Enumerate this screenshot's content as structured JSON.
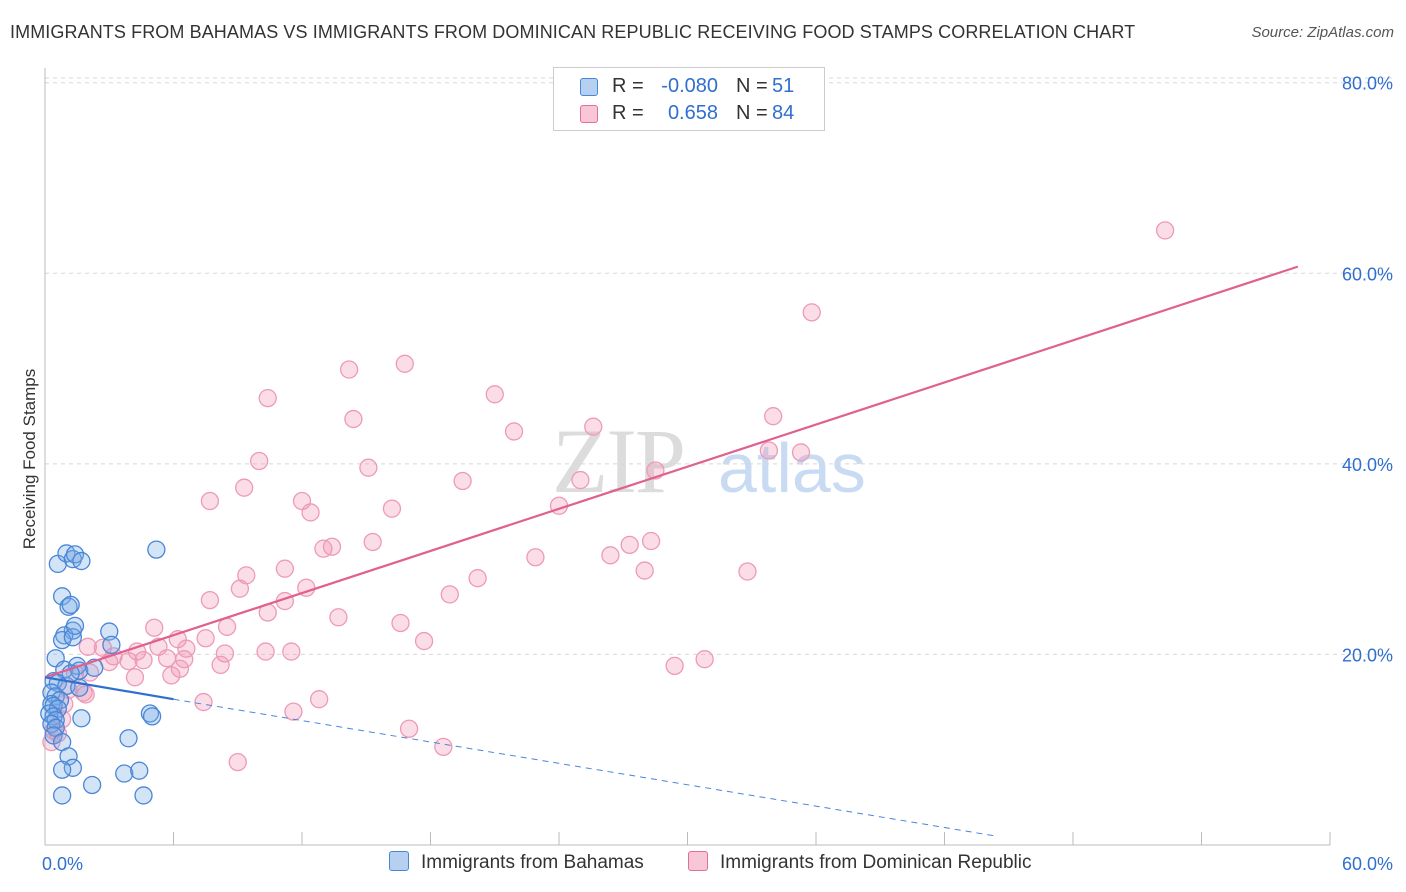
{
  "title": "IMMIGRANTS FROM BAHAMAS VS IMMIGRANTS FROM DOMINICAN REPUBLIC RECEIVING FOOD STAMPS CORRELATION CHART",
  "source": "Source: ZipAtlas.com",
  "watermark": {
    "zip": "ZIP",
    "atlas": "atlas"
  },
  "legend_top": {
    "rows": [
      {
        "r_label": "R =",
        "r_value": "-0.080",
        "n_label": "N =",
        "n_value": "51"
      },
      {
        "r_label": "R =",
        "r_value": "0.658",
        "n_label": "N =",
        "n_value": "84"
      }
    ]
  },
  "chart_data": {
    "type": "scatter",
    "title": "IMMIGRANTS FROM BAHAMAS VS IMMIGRANTS FROM DOMINICAN REPUBLIC RECEIVING FOOD STAMPS CORRELATION CHART",
    "xlabel": "",
    "ylabel": "Receiving Food Stamps",
    "xlim": [
      0,
      60
    ],
    "ylim": [
      0,
      80
    ],
    "x_tick_labels": [
      "0.0%",
      "60.0%"
    ],
    "y_tick_labels": [
      "20.0%",
      "40.0%",
      "60.0%",
      "80.0%"
    ],
    "y_ticks": [
      20,
      40,
      60,
      80
    ],
    "grid": true,
    "legend_position": "bottom",
    "colors": {
      "bahamas": "#4a86d8",
      "dominican": "#e07098",
      "accent": "#2f6fd0"
    },
    "series": [
      {
        "name": "Immigrants from Bahamas",
        "r": -0.08,
        "n": 51,
        "trend": {
          "x_start": 0,
          "y_start": 17.6,
          "x_solid_end": 6,
          "y_solid_end": 15.3,
          "x_end": 44.5,
          "y_end": 0.9
        },
        "points": [
          [
            0.6,
            29.5
          ],
          [
            1.0,
            30.6
          ],
          [
            1.3,
            30.0
          ],
          [
            1.4,
            30.5
          ],
          [
            1.7,
            29.8
          ],
          [
            5.2,
            31.0
          ],
          [
            0.8,
            26.1
          ],
          [
            1.1,
            25.0
          ],
          [
            1.2,
            25.2
          ],
          [
            1.3,
            22.5
          ],
          [
            0.9,
            22.0
          ],
          [
            0.8,
            21.5
          ],
          [
            1.3,
            21.8
          ],
          [
            1.4,
            23.0
          ],
          [
            3.0,
            22.4
          ],
          [
            3.1,
            21.0
          ],
          [
            0.5,
            19.6
          ],
          [
            0.9,
            18.4
          ],
          [
            1.5,
            18.8
          ],
          [
            1.6,
            18.3
          ],
          [
            2.3,
            18.6
          ],
          [
            0.4,
            17.2
          ],
          [
            0.6,
            17.0
          ],
          [
            1.0,
            16.7
          ],
          [
            1.6,
            16.5
          ],
          [
            0.3,
            16.0
          ],
          [
            0.5,
            15.6
          ],
          [
            0.7,
            15.2
          ],
          [
            0.3,
            14.8
          ],
          [
            0.4,
            14.6
          ],
          [
            0.6,
            14.3
          ],
          [
            0.2,
            13.8
          ],
          [
            0.4,
            13.5
          ],
          [
            0.5,
            13.1
          ],
          [
            4.9,
            13.8
          ],
          [
            5.0,
            13.5
          ],
          [
            1.7,
            13.3
          ],
          [
            0.3,
            12.7
          ],
          [
            0.5,
            12.3
          ],
          [
            0.4,
            11.5
          ],
          [
            0.8,
            10.8
          ],
          [
            3.9,
            11.2
          ],
          [
            1.1,
            9.3
          ],
          [
            1.3,
            8.1
          ],
          [
            0.8,
            7.9
          ],
          [
            3.7,
            7.5
          ],
          [
            4.4,
            7.8
          ],
          [
            2.2,
            6.3
          ],
          [
            0.8,
            5.2
          ],
          [
            4.6,
            5.2
          ],
          [
            1.2,
            18.0
          ]
        ]
      },
      {
        "name": "Immigrants from Dominican Republic",
        "r": 0.658,
        "n": 84,
        "trend": {
          "x_start": 0,
          "y_start": 17.6,
          "x_end": 58.5,
          "y_end": 60.7
        },
        "points": [
          [
            52.3,
            64.5
          ],
          [
            35.8,
            55.9
          ],
          [
            16.8,
            50.5
          ],
          [
            14.2,
            49.9
          ],
          [
            10.4,
            46.9
          ],
          [
            21.0,
            47.3
          ],
          [
            14.4,
            44.7
          ],
          [
            25.6,
            43.9
          ],
          [
            21.9,
            43.4
          ],
          [
            34.0,
            45.0
          ],
          [
            33.8,
            41.4
          ],
          [
            35.3,
            41.2
          ],
          [
            10.0,
            40.3
          ],
          [
            15.1,
            39.6
          ],
          [
            28.5,
            39.3
          ],
          [
            19.5,
            38.2
          ],
          [
            25.0,
            38.3
          ],
          [
            9.3,
            37.5
          ],
          [
            7.7,
            36.1
          ],
          [
            12.0,
            36.1
          ],
          [
            16.2,
            35.3
          ],
          [
            24.0,
            35.6
          ],
          [
            12.4,
            34.9
          ],
          [
            13.0,
            31.1
          ],
          [
            13.4,
            31.3
          ],
          [
            15.3,
            31.8
          ],
          [
            28.3,
            31.9
          ],
          [
            27.3,
            31.5
          ],
          [
            22.9,
            30.2
          ],
          [
            26.4,
            30.4
          ],
          [
            11.2,
            29.0
          ],
          [
            28.0,
            28.8
          ],
          [
            32.8,
            28.7
          ],
          [
            9.4,
            28.3
          ],
          [
            20.2,
            28.0
          ],
          [
            12.2,
            27.0
          ],
          [
            9.1,
            26.9
          ],
          [
            7.7,
            25.7
          ],
          [
            18.9,
            26.3
          ],
          [
            11.2,
            25.6
          ],
          [
            10.4,
            24.4
          ],
          [
            13.7,
            23.9
          ],
          [
            16.6,
            23.3
          ],
          [
            5.1,
            22.8
          ],
          [
            8.5,
            22.9
          ],
          [
            6.2,
            21.6
          ],
          [
            7.5,
            21.7
          ],
          [
            17.7,
            21.4
          ],
          [
            2.0,
            20.8
          ],
          [
            2.7,
            20.7
          ],
          [
            5.3,
            20.8
          ],
          [
            6.6,
            20.6
          ],
          [
            4.3,
            20.3
          ],
          [
            8.4,
            20.1
          ],
          [
            3.2,
            19.8
          ],
          [
            4.6,
            19.4
          ],
          [
            5.7,
            19.6
          ],
          [
            6.5,
            19.5
          ],
          [
            10.3,
            20.3
          ],
          [
            11.5,
            20.3
          ],
          [
            3.0,
            19.2
          ],
          [
            3.9,
            19.3
          ],
          [
            8.2,
            18.9
          ],
          [
            29.4,
            18.8
          ],
          [
            30.8,
            19.5
          ],
          [
            6.3,
            18.5
          ],
          [
            2.1,
            18.1
          ],
          [
            1.4,
            18.0
          ],
          [
            4.2,
            17.6
          ],
          [
            5.9,
            17.8
          ],
          [
            1.1,
            16.3
          ],
          [
            1.8,
            16.0
          ],
          [
            1.9,
            15.8
          ],
          [
            7.4,
            15.0
          ],
          [
            12.8,
            15.3
          ],
          [
            0.9,
            14.8
          ],
          [
            11.6,
            14.0
          ],
          [
            0.8,
            13.2
          ],
          [
            17.0,
            12.2
          ],
          [
            0.4,
            12.0
          ],
          [
            0.6,
            11.7
          ],
          [
            18.6,
            10.3
          ],
          [
            0.3,
            10.8
          ],
          [
            9.0,
            8.7
          ]
        ]
      }
    ]
  },
  "bottom_legend": [
    {
      "label": "Immigrants from Bahamas"
    },
    {
      "label": "Immigrants from Dominican Republic"
    }
  ]
}
